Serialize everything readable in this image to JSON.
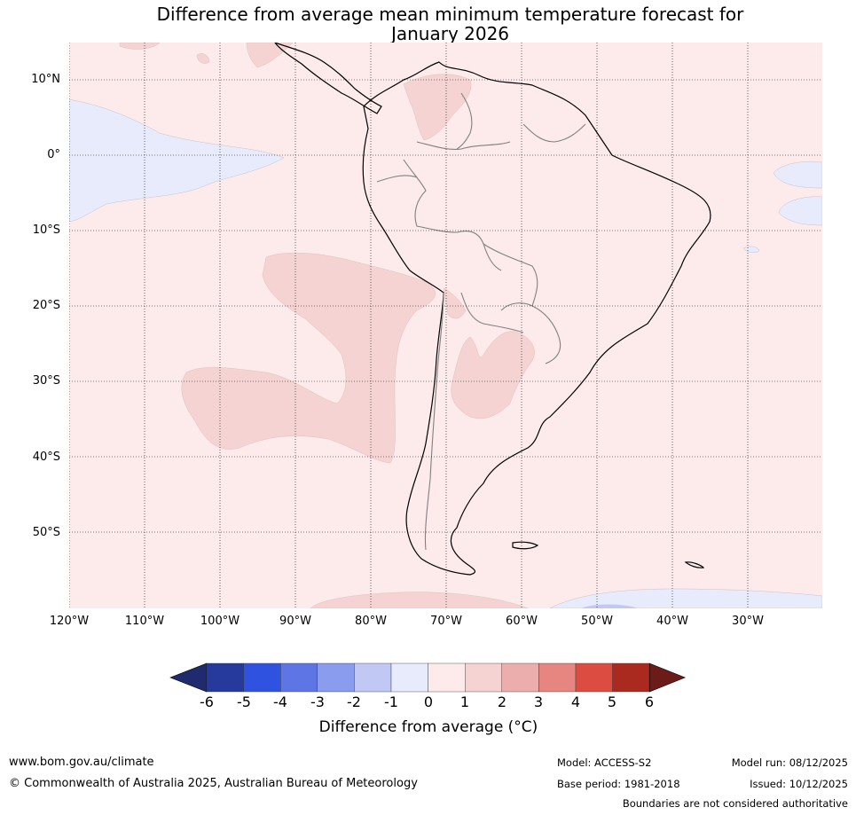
{
  "title": {
    "line1": "Difference from average mean minimum temperature forecast for",
    "line2": "January 2026"
  },
  "latitude_labels": [
    "10°N",
    "0°",
    "10°S",
    "20°S",
    "30°S",
    "40°S",
    "50°S"
  ],
  "longitude_labels": [
    "120°W",
    "110°W",
    "100°W",
    "90°W",
    "80°W",
    "70°W",
    "60°W",
    "50°W",
    "40°W",
    "30°W"
  ],
  "colorbar": {
    "ticks": [
      "-6",
      "-5",
      "-4",
      "-3",
      "-2",
      "-1",
      "0",
      "1",
      "2",
      "3",
      "4",
      "5",
      "6"
    ],
    "colors": [
      "#263a9e",
      "#2f52e0",
      "#5d75e5",
      "#8a9cee",
      "#c1c8f4",
      "#e8ebfb",
      "#fcebea",
      "#f5d3d3",
      "#ebaeac",
      "#e78580",
      "#dd4c40",
      "#aa2a20"
    ],
    "low_extend_color": "#1f2b6e",
    "high_extend_color": "#6b1c18",
    "label": "Difference from average (°C)"
  },
  "map": {
    "background_color": "#fcebea",
    "warm_anomaly_color": "#f5d3d3",
    "cool_anomaly_color": "#e8ebfb",
    "deep_cool_color": "#c1c8f4",
    "coastline_color": "#000000",
    "border_color": "#808080",
    "region": "South America"
  },
  "footer": {
    "website": "www.bom.gov.au/climate",
    "copyright": "© Commonwealth of Australia 2025, Australian Bureau of Meteorology",
    "model": "Model: ACCESS-S2",
    "model_run": "Model run: 08/12/2025",
    "base_period": "Base period: 1981-2018",
    "issued": "Issued: 10/12/2025",
    "disclaimer": "Boundaries are not considered authoritative"
  }
}
